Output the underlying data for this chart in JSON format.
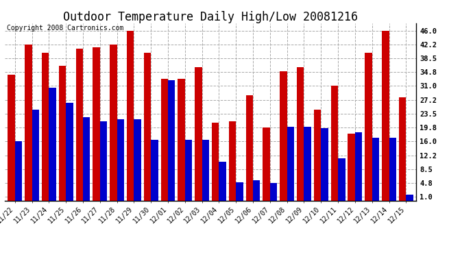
{
  "title": "Outdoor Temperature Daily High/Low 20081216",
  "copyright": "Copyright 2008 Cartronics.com",
  "dates": [
    "11/22",
    "11/23",
    "11/24",
    "11/25",
    "11/26",
    "11/27",
    "11/28",
    "11/29",
    "11/30",
    "12/01",
    "12/02",
    "12/03",
    "12/04",
    "12/05",
    "12/06",
    "12/07",
    "12/08",
    "12/09",
    "12/10",
    "12/11",
    "12/12",
    "12/13",
    "12/14",
    "12/15"
  ],
  "highs": [
    34.0,
    42.2,
    40.0,
    36.5,
    41.0,
    41.5,
    42.2,
    46.0,
    40.0,
    33.0,
    33.0,
    36.0,
    21.0,
    21.5,
    28.5,
    19.8,
    35.0,
    36.0,
    24.5,
    31.0,
    18.0,
    40.0,
    46.0,
    28.0
  ],
  "lows": [
    16.0,
    24.5,
    30.5,
    26.5,
    22.5,
    21.5,
    22.0,
    22.0,
    16.5,
    32.5,
    16.5,
    16.5,
    10.5,
    5.0,
    5.5,
    4.8,
    20.0,
    20.0,
    19.5,
    11.5,
    18.5,
    17.0,
    17.0,
    1.5
  ],
  "high_color": "#cc0000",
  "low_color": "#0000cc",
  "bg_color": "#ffffff",
  "yticks": [
    1.0,
    4.8,
    8.5,
    12.2,
    16.0,
    19.8,
    23.5,
    27.2,
    31.0,
    34.8,
    38.5,
    42.2,
    46.0
  ],
  "grid_color": "#aaaaaa",
  "title_fontsize": 12,
  "copyright_fontsize": 7,
  "bar_width": 0.42
}
